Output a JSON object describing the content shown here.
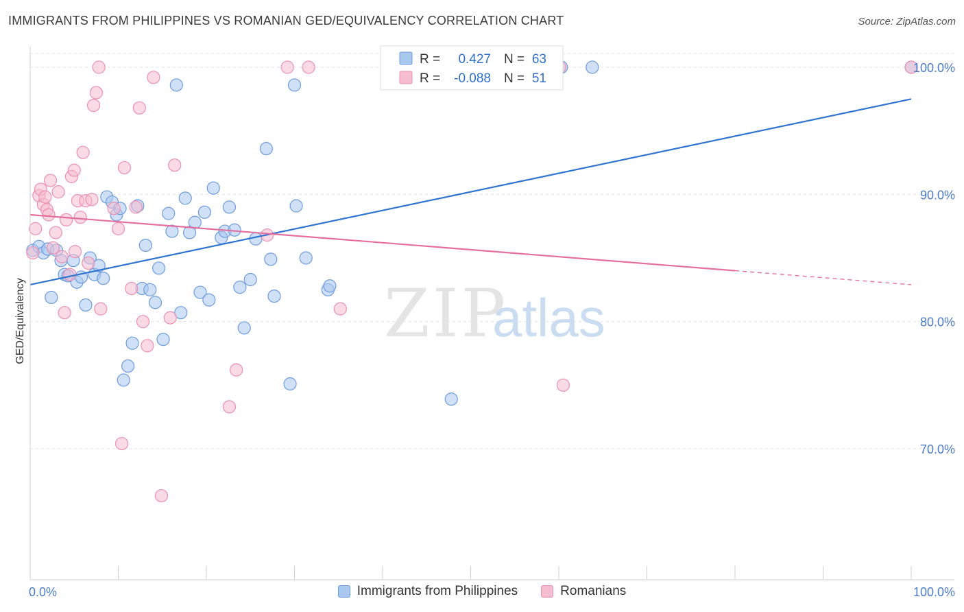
{
  "title": "IMMIGRANTS FROM PHILIPPINES VS ROMANIAN GED/EQUIVALENCY CORRELATION CHART",
  "source": "Source: ZipAtlas.com",
  "watermark": {
    "zip": "ZIP",
    "atlas": "atlas"
  },
  "colors": {
    "blue_fill": "#a9c8f0",
    "blue_stroke": "#6b9be0",
    "blue_line": "#2f74d0",
    "pink_fill": "#f6bcd0",
    "pink_stroke": "#ec8fb0",
    "pink_line": "#e46f9e",
    "grid": "#e3e3e3",
    "tick_label": "#4a7bc8"
  },
  "legend": {
    "r_label": "R =",
    "n_label": "N =",
    "rows": [
      {
        "series": "blue",
        "r": "0.427",
        "n": "63"
      },
      {
        "series": "pink",
        "r": "-0.088",
        "n": "51"
      }
    ]
  },
  "bottom_legend": [
    {
      "series": "blue",
      "label": "Immigrants from Philippines"
    },
    {
      "series": "pink",
      "label": "Romanians"
    }
  ],
  "chart_data": {
    "type": "scatter",
    "title": "IMMIGRANTS FROM PHILIPPINES VS ROMANIAN GED/EQUIVALENCY CORRELATION CHART",
    "xlabel": "",
    "ylabel": "GED/Equivalency",
    "xlim": [
      0,
      100
    ],
    "ylim": [
      60,
      101
    ],
    "x_tick_labels": [
      {
        "value": 0,
        "label": "0.0%"
      },
      {
        "value": 100,
        "label": "100.0%"
      }
    ],
    "y_tick_labels": [
      {
        "value": 100,
        "label": "100.0%"
      },
      {
        "value": 90,
        "label": "90.0%"
      },
      {
        "value": 80,
        "label": "80.0%"
      },
      {
        "value": 70,
        "label": "70.0%"
      }
    ],
    "grid": true,
    "legend_position": "top-center",
    "series": [
      {
        "name": "Immigrants from Philippines",
        "color": "#6b9be0",
        "trend": {
          "x": [
            0,
            100
          ],
          "y": [
            82.9,
            97.5
          ],
          "dashed_from": null
        },
        "points": [
          [
            0.3,
            85.6
          ],
          [
            1.0,
            85.9
          ],
          [
            1.5,
            85.4
          ],
          [
            2.0,
            85.7
          ],
          [
            2.4,
            81.9
          ],
          [
            3.0,
            85.6
          ],
          [
            3.5,
            84.8
          ],
          [
            3.9,
            83.7
          ],
          [
            4.3,
            83.6
          ],
          [
            4.9,
            84.8
          ],
          [
            5.3,
            83.1
          ],
          [
            5.8,
            83.5
          ],
          [
            6.3,
            81.3
          ],
          [
            6.8,
            85.0
          ],
          [
            7.3,
            83.7
          ],
          [
            7.8,
            84.4
          ],
          [
            8.3,
            83.4
          ],
          [
            8.7,
            89.8
          ],
          [
            9.3,
            89.4
          ],
          [
            9.8,
            88.4
          ],
          [
            10.2,
            88.9
          ],
          [
            10.6,
            75.4
          ],
          [
            11.1,
            76.5
          ],
          [
            11.6,
            78.3
          ],
          [
            12.2,
            89.1
          ],
          [
            12.7,
            82.6
          ],
          [
            13.1,
            86.0
          ],
          [
            13.6,
            82.5
          ],
          [
            14.2,
            81.5
          ],
          [
            14.6,
            84.2
          ],
          [
            15.1,
            78.6
          ],
          [
            15.7,
            88.5
          ],
          [
            16.1,
            87.1
          ],
          [
            16.6,
            98.6
          ],
          [
            17.1,
            80.7
          ],
          [
            17.6,
            89.7
          ],
          [
            18.1,
            87.0
          ],
          [
            18.7,
            87.8
          ],
          [
            19.3,
            82.3
          ],
          [
            19.8,
            88.6
          ],
          [
            20.3,
            81.7
          ],
          [
            20.8,
            90.5
          ],
          [
            21.7,
            86.6
          ],
          [
            22.1,
            87.1
          ],
          [
            22.6,
            89.0
          ],
          [
            23.2,
            87.2
          ],
          [
            23.8,
            82.7
          ],
          [
            24.3,
            79.5
          ],
          [
            25.0,
            83.3
          ],
          [
            25.6,
            86.5
          ],
          [
            26.8,
            93.6
          ],
          [
            27.3,
            84.9
          ],
          [
            27.7,
            82.0
          ],
          [
            29.5,
            75.1
          ],
          [
            30.0,
            98.6
          ],
          [
            30.2,
            89.1
          ],
          [
            31.3,
            85.0
          ],
          [
            33.8,
            82.5
          ],
          [
            34.0,
            82.8
          ],
          [
            47.8,
            73.9
          ],
          [
            60.3,
            100.0
          ],
          [
            63.8,
            100.0
          ],
          [
            100.0,
            100.0
          ]
        ]
      },
      {
        "name": "Romanians",
        "color": "#ec8fb0",
        "trend": {
          "x": [
            0,
            100
          ],
          "y": [
            88.4,
            82.9
          ],
          "dashed_from": 80
        },
        "points": [
          [
            0.3,
            85.4
          ],
          [
            0.6,
            87.3
          ],
          [
            1.0,
            89.9
          ],
          [
            1.2,
            90.4
          ],
          [
            1.5,
            89.2
          ],
          [
            1.7,
            89.8
          ],
          [
            1.9,
            88.8
          ],
          [
            2.1,
            88.4
          ],
          [
            2.3,
            91.1
          ],
          [
            2.6,
            85.8
          ],
          [
            2.9,
            87.0
          ],
          [
            3.2,
            90.2
          ],
          [
            3.6,
            85.1
          ],
          [
            3.9,
            80.7
          ],
          [
            4.1,
            88.0
          ],
          [
            4.5,
            83.7
          ],
          [
            4.7,
            91.4
          ],
          [
            5.0,
            91.9
          ],
          [
            5.1,
            85.5
          ],
          [
            5.4,
            89.5
          ],
          [
            5.7,
            88.2
          ],
          [
            6.0,
            93.3
          ],
          [
            6.3,
            89.5
          ],
          [
            6.6,
            84.6
          ],
          [
            7.0,
            89.6
          ],
          [
            7.2,
            97.0
          ],
          [
            7.5,
            98.0
          ],
          [
            7.8,
            100.0
          ],
          [
            8.0,
            81.0
          ],
          [
            9.5,
            88.9
          ],
          [
            10.0,
            87.3
          ],
          [
            10.4,
            70.4
          ],
          [
            10.7,
            92.1
          ],
          [
            11.5,
            82.6
          ],
          [
            12.0,
            89.0
          ],
          [
            12.4,
            96.8
          ],
          [
            12.8,
            80.0
          ],
          [
            13.3,
            78.1
          ],
          [
            14.0,
            99.2
          ],
          [
            14.9,
            66.3
          ],
          [
            15.9,
            80.3
          ],
          [
            16.4,
            92.3
          ],
          [
            22.6,
            73.3
          ],
          [
            23.4,
            76.2
          ],
          [
            26.9,
            86.8
          ],
          [
            29.2,
            100.0
          ],
          [
            31.6,
            100.0
          ],
          [
            35.2,
            81.0
          ],
          [
            100.0,
            100.0
          ],
          [
            60.1,
            100.0
          ],
          [
            60.5,
            75.0
          ]
        ]
      }
    ]
  }
}
